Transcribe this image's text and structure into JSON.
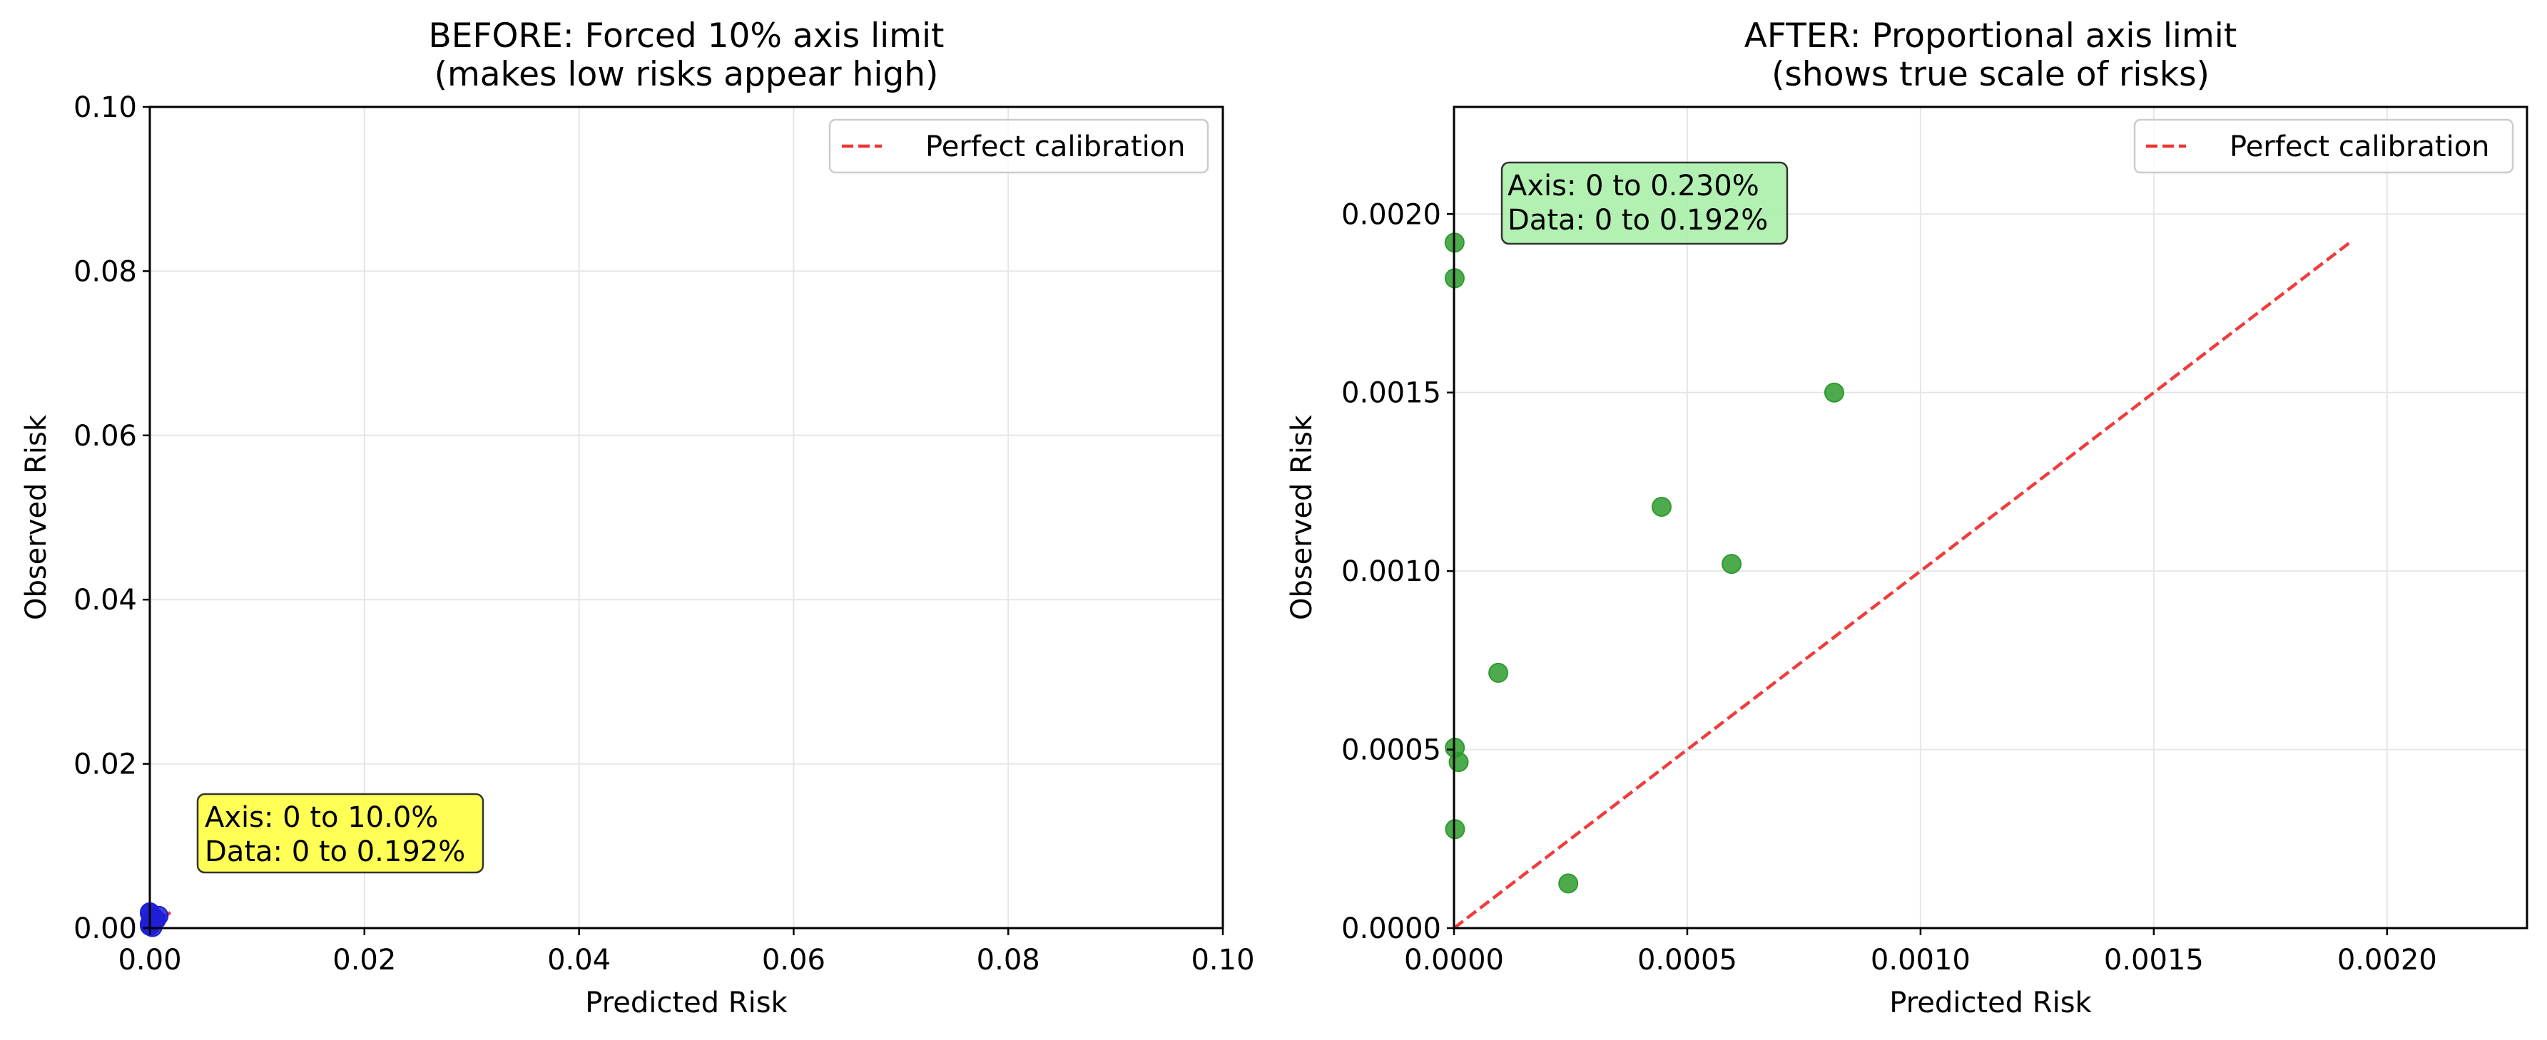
{
  "chart_data": [
    {
      "type": "scatter",
      "title_line1": "BEFORE: Forced 10% axis limit",
      "title_line2": "(makes low risks appear high)",
      "xlabel": "Predicted Risk",
      "ylabel": "Observed Risk",
      "xlim": [
        0,
        0.1
      ],
      "ylim": [
        0,
        0.1
      ],
      "xticks": [
        "0.00",
        "0.02",
        "0.04",
        "0.06",
        "0.08",
        "0.10"
      ],
      "yticks": [
        "0.00",
        "0.02",
        "0.04",
        "0.06",
        "0.08",
        "0.10"
      ],
      "grid": true,
      "legend": {
        "position": "top-right",
        "label": "Perfect calibration"
      },
      "reference_line": {
        "from": [
          0,
          0
        ],
        "to": [
          0.00192,
          0.00192
        ],
        "style": "dashed",
        "color": "#ee3333"
      },
      "point_color": "#1f1fd6",
      "series": [
        {
          "x": [
            1.2e-06,
            1.4e-06,
            1.8e-06,
            2.2e-06,
            1e-05,
            9.5e-05,
            0.000245,
            0.000445,
            0.000595,
            0.000815
          ],
          "y": [
            0.00192,
            0.00182,
            0.000505,
            0.000277,
            0.000465,
            0.000715,
            0.000125,
            0.00118,
            0.00102,
            0.0015
          ]
        }
      ],
      "annotation": {
        "line1": "Axis: 0 to 10.0%",
        "line2": "Data: 0 to 0.192%",
        "background": "#ffff44",
        "position": "bottom-left"
      }
    },
    {
      "type": "scatter",
      "title_line1": "AFTER: Proportional axis limit",
      "title_line2": "(shows true scale of risks)",
      "xlabel": "Predicted Risk",
      "ylabel": "Observed Risk",
      "xlim": [
        0,
        0.0023
      ],
      "ylim": [
        0,
        0.0023
      ],
      "xticks": [
        "0.0000",
        "0.0005",
        "0.0010",
        "0.0015",
        "0.0020"
      ],
      "yticks": [
        "0.0000",
        "0.0005",
        "0.0010",
        "0.0015",
        "0.0020"
      ],
      "grid": true,
      "legend": {
        "position": "top-right",
        "label": "Perfect calibration"
      },
      "reference_line": {
        "from": [
          0,
          0
        ],
        "to": [
          0.00192,
          0.00192
        ],
        "style": "dashed",
        "color": "#ee3333"
      },
      "point_color": "#2e9c2e",
      "series": [
        {
          "x": [
            1.2e-06,
            1.4e-06,
            1.8e-06,
            2.2e-06,
            1e-05,
            9.5e-05,
            0.000245,
            0.000445,
            0.000595,
            0.000815
          ],
          "y": [
            0.00192,
            0.00182,
            0.000505,
            0.000277,
            0.000465,
            0.000715,
            0.000125,
            0.00118,
            0.00102,
            0.0015
          ]
        }
      ],
      "annotation": {
        "line1": "Axis: 0 to 0.230%",
        "line2": "Data: 0 to 0.192%",
        "background": "#aaf0aa",
        "position": "top-left"
      }
    }
  ]
}
